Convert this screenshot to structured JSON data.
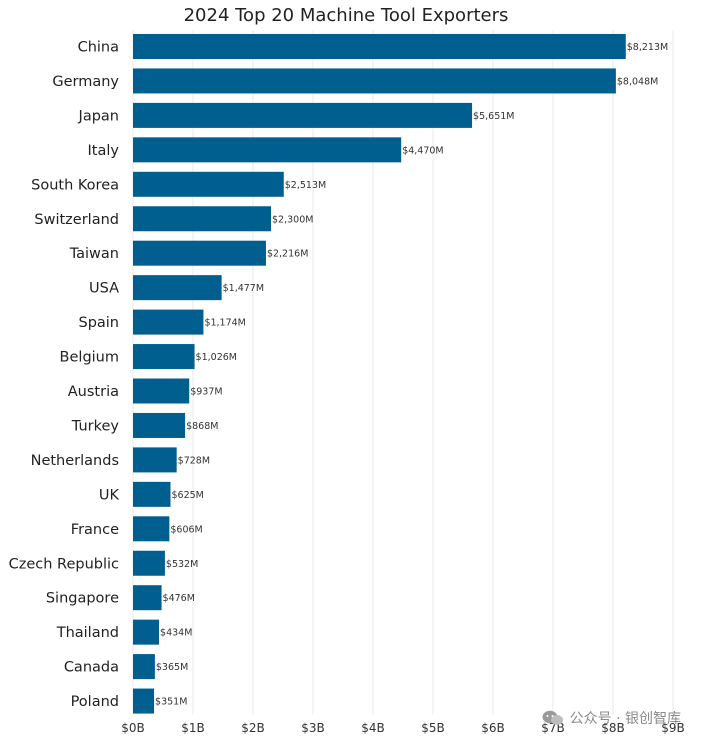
{
  "chart_data": {
    "type": "bar",
    "orientation": "horizontal",
    "title": "2024 Top 20 Machine Tool Exporters",
    "xlabel": "",
    "ylabel": "",
    "categories": [
      "China",
      "Germany",
      "Japan",
      "Italy",
      "South Korea",
      "Switzerland",
      "Taiwan",
      "USA",
      "Spain",
      "Belgium",
      "Austria",
      "Turkey",
      "Netherlands",
      "UK",
      "France",
      "Czech Republic",
      "Singapore",
      "Thailand",
      "Canada",
      "Poland"
    ],
    "values": [
      8213,
      8048,
      5651,
      4470,
      2513,
      2300,
      2216,
      1477,
      1174,
      1026,
      937,
      868,
      728,
      625,
      606,
      532,
      476,
      434,
      365,
      351
    ],
    "value_labels": [
      "$8,213M",
      "$8,048M",
      "$5,651M",
      "$4,470M",
      "$2,513M",
      "$2,300M",
      "$2,216M",
      "$1,477M",
      "$1,174M",
      "$1,026M",
      "$937M",
      "$868M",
      "$728M",
      "$625M",
      "$606M",
      "$532M",
      "$476M",
      "$434M",
      "$365M",
      "$351M"
    ],
    "unit": "$M",
    "xlim": [
      0,
      9000
    ],
    "xticks": [
      0,
      1000,
      2000,
      3000,
      4000,
      5000,
      6000,
      7000,
      8000,
      9000
    ],
    "xtick_labels": [
      "$0B",
      "$1B",
      "$2B",
      "$3B",
      "$4B",
      "$5B",
      "$6B",
      "$7B",
      "$8B",
      "$9B"
    ],
    "grid": true,
    "colors": {
      "bar": "#005f8f"
    }
  },
  "watermark": {
    "text": "公众号 · 银创智库",
    "icon": "wechat-icon"
  }
}
